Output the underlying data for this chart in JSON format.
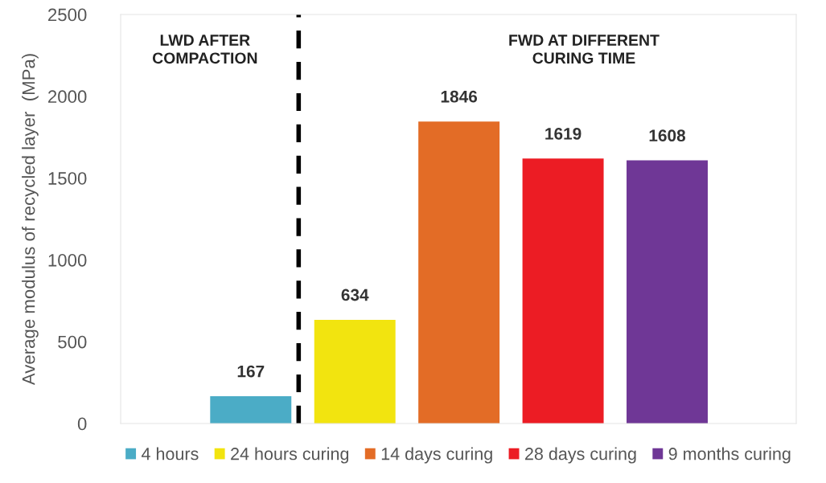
{
  "chart_data": {
    "type": "bar",
    "ylabel": "Average modulus of recycled layer  (MPa)",
    "categories": [
      null,
      null,
      null,
      null,
      null
    ],
    "series": [
      {
        "name": "4 hours",
        "color": "#4bacc6",
        "values": [
          167,
          null,
          null,
          null,
          null
        ]
      },
      {
        "name": "24 hours curing",
        "color": "#f2e40f",
        "values": [
          null,
          634,
          null,
          null,
          null
        ]
      },
      {
        "name": "14 days curing",
        "color": "#e36c26",
        "values": [
          null,
          null,
          1846,
          null,
          null
        ]
      },
      {
        "name": "28 days curing",
        "color": "#ec1c24",
        "values": [
          null,
          null,
          null,
          1619,
          null
        ]
      },
      {
        "name": "9 months curing",
        "color": "#6f3796",
        "values": [
          null,
          null,
          null,
          null,
          1608
        ]
      }
    ],
    "ylim": [
      0,
      2500
    ],
    "yticks": [
      0,
      500,
      1000,
      1500,
      2000,
      2500
    ],
    "annotations": [
      "LWD AFTER\nCOMPACTION",
      "FWD AT DIFFERENT\nCURING TIME"
    ],
    "data_labels": true,
    "grid": false,
    "legend": "bottom"
  }
}
